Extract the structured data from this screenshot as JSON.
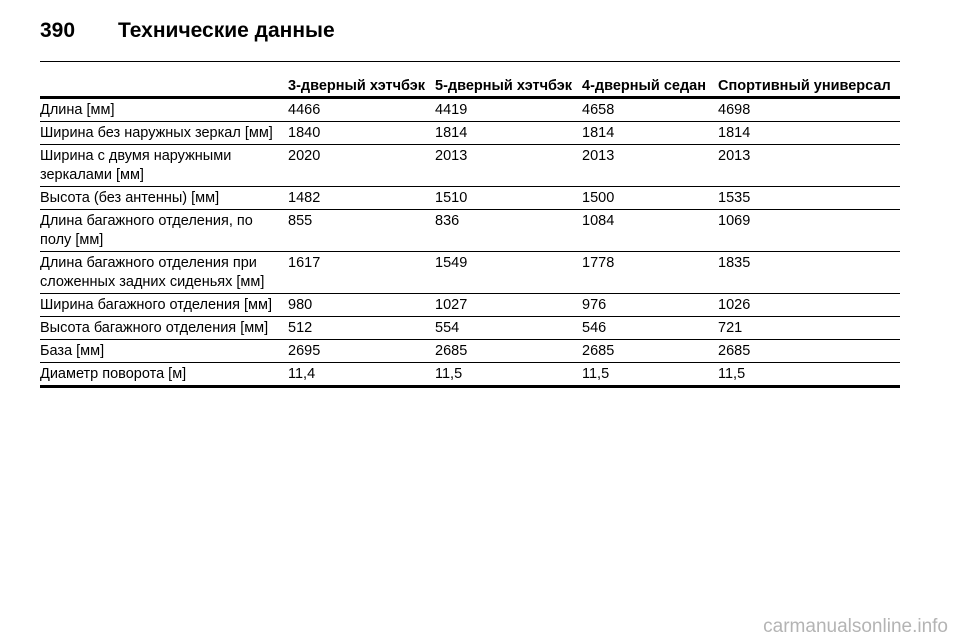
{
  "header": {
    "page_number": "390",
    "title": "Технические данные"
  },
  "table": {
    "columns": [
      "",
      "3-дверный хэтчбэк",
      "5-дверный хэтчбэк",
      "4-дверный седан",
      "Спортивный универсал"
    ],
    "rows": [
      [
        "Длина [мм]",
        "4466",
        "4419",
        "4658",
        "4698"
      ],
      [
        "Ширина без наружных зеркал [мм]",
        "1840",
        "1814",
        "1814",
        "1814"
      ],
      [
        "Ширина с двумя наружными зеркалами [мм]",
        "2020",
        "2013",
        "2013",
        "2013"
      ],
      [
        "Высота (без антенны) [мм]",
        "1482",
        "1510",
        "1500",
        "1535"
      ],
      [
        "Длина багажного отделения, по полу [мм]",
        "855",
        "836",
        "1084",
        "1069"
      ],
      [
        "Длина багажного отделения при сложенных задних сиденьях [мм]",
        "1617",
        "1549",
        "1778",
        "1835"
      ],
      [
        "Ширина багажного отделения [мм]",
        "980",
        "1027",
        "976",
        "1026"
      ],
      [
        "Высота багажного отделения [мм]",
        "512",
        "554",
        "546",
        "721"
      ],
      [
        "База [мм]",
        "2695",
        "2685",
        "2685",
        "2685"
      ],
      [
        "Диаметр поворота [м]",
        "11,4",
        "11,5",
        "11,5",
        "11,5"
      ]
    ]
  },
  "watermark": "carmanualsonline.info"
}
